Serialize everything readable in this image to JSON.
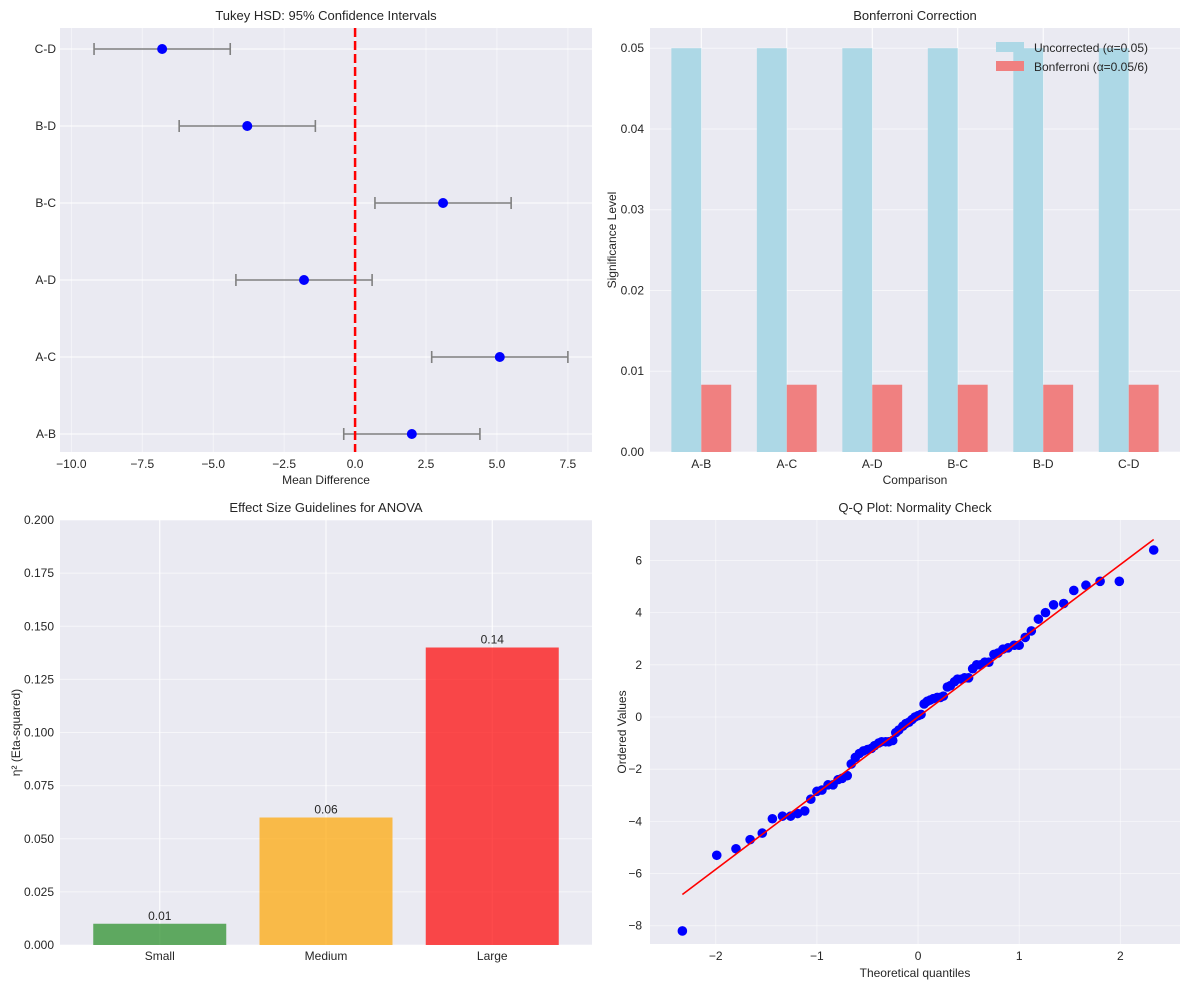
{
  "chart_data": [
    {
      "id": "tukey",
      "type": "scatter",
      "title": "Tukey HSD: 95% Confidence Intervals",
      "xlabel": "Mean Difference",
      "ylabel": "",
      "xlim": [
        -10.4,
        8.35
      ],
      "xticks": [
        -10.0,
        -7.5,
        -5.0,
        -2.5,
        0.0,
        2.5,
        5.0,
        7.5
      ],
      "xtick_labels": [
        "−10.0",
        "−7.5",
        "−5.0",
        "−2.5",
        "0.0",
        "2.5",
        "5.0",
        "7.5"
      ],
      "categories": [
        "A-B",
        "A-C",
        "A-D",
        "B-C",
        "B-D",
        "C-D"
      ],
      "means": [
        2.0,
        5.1,
        -1.8,
        3.1,
        -3.8,
        -6.8
      ],
      "ci_lower": [
        -0.4,
        2.7,
        -4.2,
        0.7,
        -6.2,
        -9.2
      ],
      "ci_upper": [
        4.4,
        7.5,
        0.6,
        5.5,
        -1.4,
        -4.4
      ],
      "reference_line": 0,
      "grid": true,
      "colors": {
        "point": "#0000ff",
        "errorbar": "#808080",
        "refline": "#ff0000"
      }
    },
    {
      "id": "bonferroni",
      "type": "bar",
      "title": "Bonferroni Correction",
      "xlabel": "Comparison",
      "ylabel": "Significance Level",
      "ylim": [
        0,
        0.0525
      ],
      "yticks": [
        0.0,
        0.01,
        0.02,
        0.03,
        0.04,
        0.05
      ],
      "ytick_labels": [
        "0.00",
        "0.01",
        "0.02",
        "0.03",
        "0.04",
        "0.05"
      ],
      "categories": [
        "A-B",
        "A-C",
        "A-D",
        "B-C",
        "B-D",
        "C-D"
      ],
      "series": [
        {
          "name": "Uncorrected (α=0.05)",
          "values": [
            0.05,
            0.05,
            0.05,
            0.05,
            0.05,
            0.05
          ],
          "color": "#add8e6"
        },
        {
          "name": "Bonferroni (α=0.05/6)",
          "values": [
            0.00833,
            0.00833,
            0.00833,
            0.00833,
            0.00833,
            0.00833
          ],
          "color": "#f08080"
        }
      ],
      "legend": "top-right",
      "grid": true
    },
    {
      "id": "effect_size",
      "type": "bar",
      "title": "Effect Size Guidelines for ANOVA",
      "xlabel": "",
      "ylabel": "η² (Eta-squared)",
      "ylim": [
        0,
        0.2
      ],
      "yticks": [
        0.0,
        0.025,
        0.05,
        0.075,
        0.1,
        0.125,
        0.15,
        0.175,
        0.2
      ],
      "ytick_labels": [
        "0.000",
        "0.025",
        "0.050",
        "0.075",
        "0.100",
        "0.125",
        "0.150",
        "0.175",
        "0.200"
      ],
      "categories": [
        "Small",
        "Medium",
        "Large"
      ],
      "values": [
        0.01,
        0.06,
        0.14
      ],
      "data_labels": [
        "0.01",
        "0.06",
        "0.14"
      ],
      "colors": [
        "#228b22",
        "#ffa500",
        "#ff0000"
      ],
      "grid": true
    },
    {
      "id": "qq",
      "type": "scatter",
      "title": "Q-Q Plot: Normality Check",
      "xlabel": "Theoretical quantiles",
      "ylabel": "Ordered Values",
      "xlim": [
        -2.65,
        2.59
      ],
      "ylim": [
        -8.7,
        7.55
      ],
      "xticks": [
        -2,
        -1,
        0,
        1,
        2
      ],
      "xtick_labels": [
        "−2",
        "−1",
        "0",
        "1",
        "2"
      ],
      "yticks": [
        -8,
        -6,
        -4,
        -2,
        0,
        2,
        4,
        6
      ],
      "ytick_labels": [
        "−8",
        "−6",
        "−4",
        "−2",
        "0",
        "2",
        "4",
        "6"
      ],
      "fit_line": {
        "slope": 2.92,
        "intercept": 0.0,
        "x_range": [
          -2.33,
          2.33
        ]
      },
      "points": [
        [
          -2.33,
          -8.2
        ],
        [
          -1.99,
          -5.3
        ],
        [
          -1.8,
          -5.05
        ],
        [
          -1.66,
          -4.7
        ],
        [
          -1.54,
          -4.45
        ],
        [
          -1.44,
          -3.9
        ],
        [
          -1.34,
          -3.8
        ],
        [
          -1.26,
          -3.8
        ],
        [
          -1.19,
          -3.7
        ],
        [
          -1.12,
          -3.6
        ],
        [
          -1.06,
          -3.15
        ],
        [
          -1.0,
          -2.85
        ],
        [
          -0.95,
          -2.8
        ],
        [
          -0.89,
          -2.6
        ],
        [
          -0.84,
          -2.6
        ],
        [
          -0.79,
          -2.4
        ],
        [
          -0.75,
          -2.35
        ],
        [
          -0.7,
          -2.25
        ],
        [
          -0.66,
          -1.8
        ],
        [
          -0.62,
          -1.55
        ],
        [
          -0.58,
          -1.4
        ],
        [
          -0.54,
          -1.3
        ],
        [
          -0.5,
          -1.25
        ],
        [
          -0.46,
          -1.2
        ],
        [
          -0.43,
          -1.1
        ],
        [
          -0.39,
          -1.0
        ],
        [
          -0.36,
          -0.95
        ],
        [
          -0.32,
          -0.95
        ],
        [
          -0.29,
          -0.95
        ],
        [
          -0.25,
          -0.9
        ],
        [
          -0.22,
          -0.6
        ],
        [
          -0.19,
          -0.5
        ],
        [
          -0.15,
          -0.35
        ],
        [
          -0.12,
          -0.25
        ],
        [
          -0.09,
          -0.2
        ],
        [
          -0.06,
          -0.1
        ],
        [
          -0.03,
          0.0
        ],
        [
          0.0,
          0.05
        ],
        [
          0.03,
          0.1
        ],
        [
          0.06,
          0.5
        ],
        [
          0.09,
          0.6
        ],
        [
          0.12,
          0.65
        ],
        [
          0.15,
          0.7
        ],
        [
          0.19,
          0.75
        ],
        [
          0.22,
          0.75
        ],
        [
          0.25,
          0.8
        ],
        [
          0.29,
          1.15
        ],
        [
          0.32,
          1.2
        ],
        [
          0.36,
          1.35
        ],
        [
          0.39,
          1.45
        ],
        [
          0.43,
          1.45
        ],
        [
          0.46,
          1.5
        ],
        [
          0.5,
          1.5
        ],
        [
          0.54,
          1.85
        ],
        [
          0.58,
          2.0
        ],
        [
          0.62,
          2.0
        ],
        [
          0.66,
          2.1
        ],
        [
          0.7,
          2.1
        ],
        [
          0.75,
          2.4
        ],
        [
          0.79,
          2.45
        ],
        [
          0.84,
          2.6
        ],
        [
          0.89,
          2.65
        ],
        [
          0.95,
          2.75
        ],
        [
          1.0,
          2.75
        ],
        [
          1.06,
          3.05
        ],
        [
          1.12,
          3.3
        ],
        [
          1.19,
          3.75
        ],
        [
          1.26,
          4.0
        ],
        [
          1.34,
          4.3
        ],
        [
          1.44,
          4.35
        ],
        [
          1.54,
          4.85
        ],
        [
          1.66,
          5.05
        ],
        [
          1.8,
          5.2
        ],
        [
          1.99,
          5.2
        ],
        [
          2.33,
          6.4
        ]
      ],
      "colors": {
        "point": "#0000ff",
        "line": "#ff0000"
      },
      "grid": true
    }
  ]
}
